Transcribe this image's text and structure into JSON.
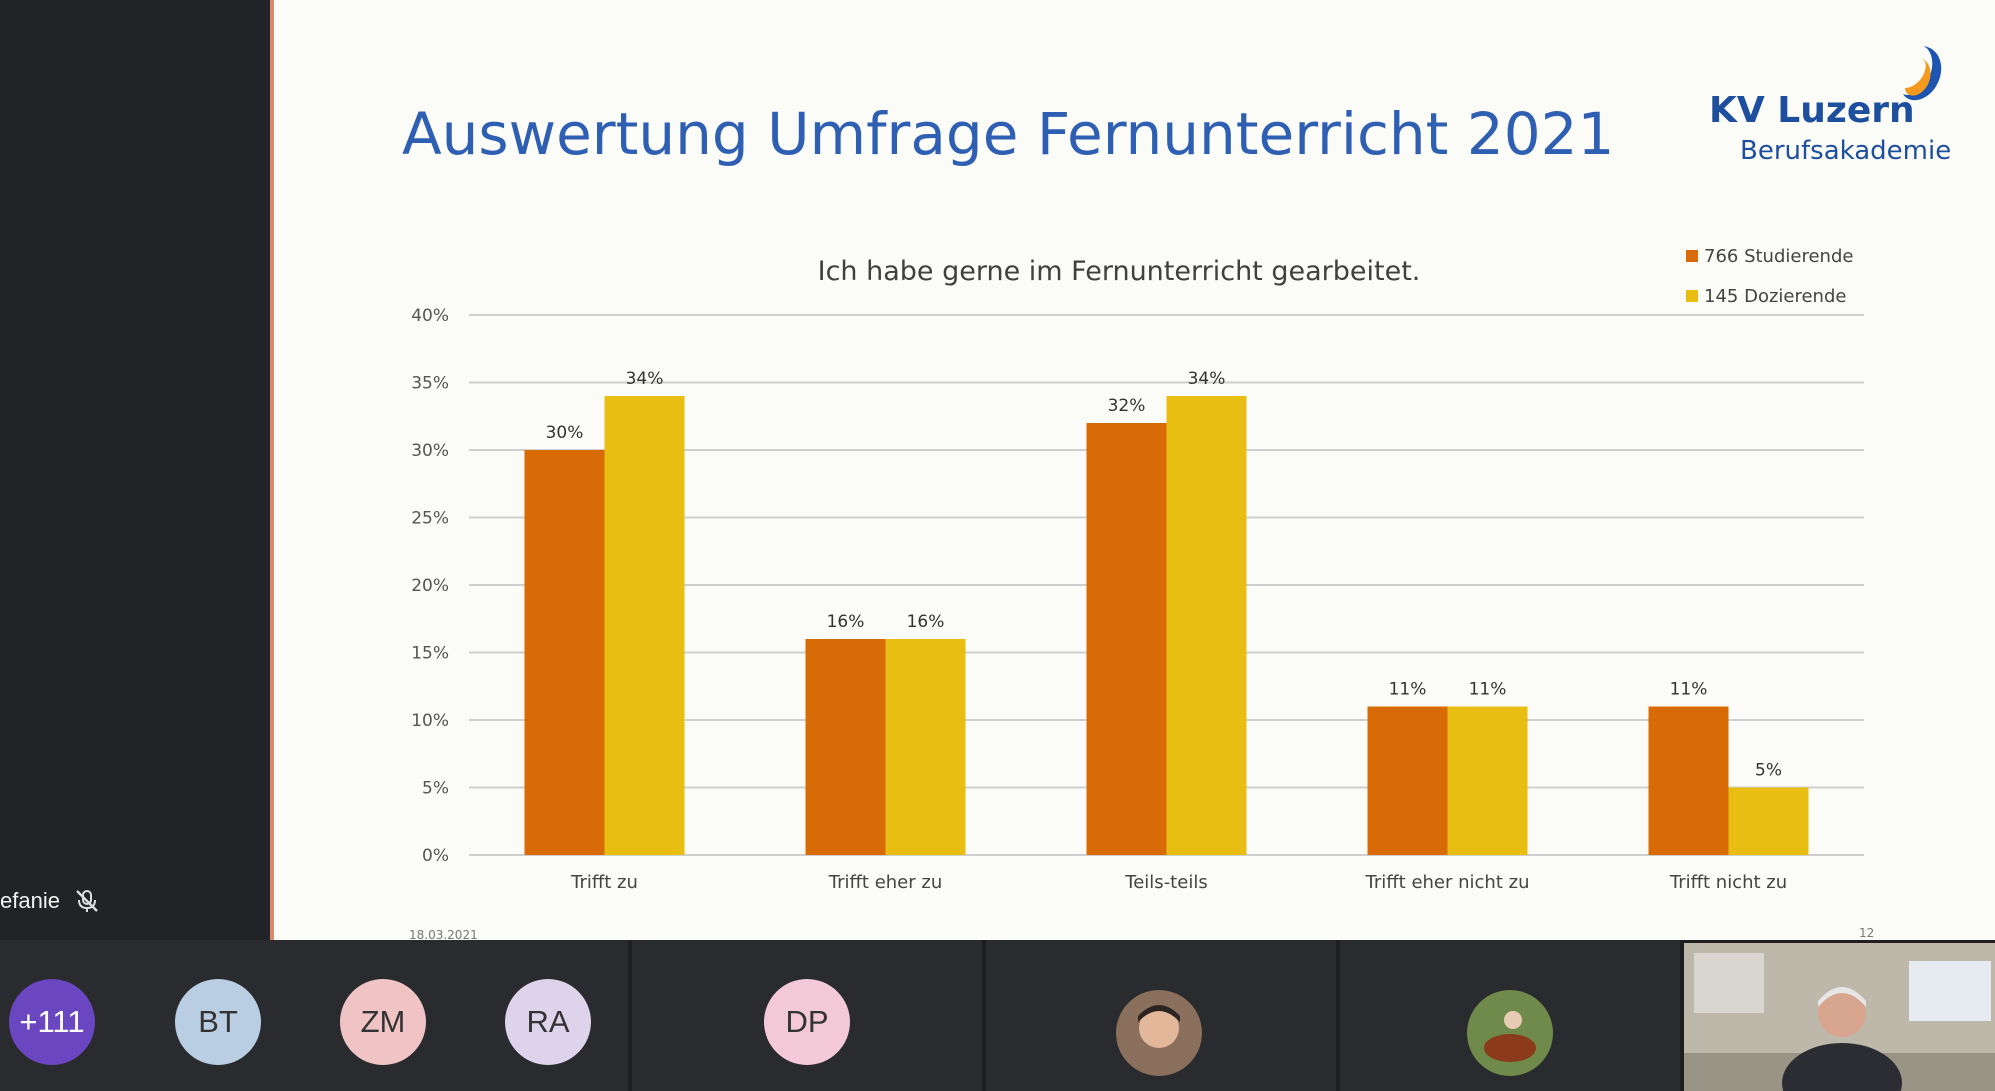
{
  "participant": {
    "name": "efanie"
  },
  "slide": {
    "title": "Auswertung Umfrage Fernunterricht 2021",
    "logo_name": "KV Luzern",
    "logo_sub": "Berufsakademie",
    "date": "18.03.2021",
    "page": "12"
  },
  "chart_data": {
    "type": "bar",
    "title": "Ich habe gerne im Fernunterricht gearbeitet.",
    "categories": [
      "Trifft zu",
      "Trifft eher zu",
      "Teils-teils",
      "Trifft eher nicht zu",
      "Trifft nicht zu"
    ],
    "series": [
      {
        "name": "766 Studierende",
        "color": "#d86b06",
        "values": [
          30,
          16,
          32,
          11,
          11
        ]
      },
      {
        "name": "145 Dozierende",
        "color": "#e9be12",
        "values": [
          34,
          16,
          34,
          11,
          5
        ]
      }
    ],
    "data_labels": [
      [
        "30%",
        "16%",
        "32%",
        "11%",
        "11%"
      ],
      [
        "34%",
        "16%",
        "34%",
        "11%",
        "5%"
      ]
    ],
    "ylim": [
      0,
      40
    ],
    "yticks": [
      "0%",
      "5%",
      "10%",
      "15%",
      "20%",
      "25%",
      "30%",
      "35%",
      "40%"
    ],
    "grid": true,
    "legend_position": "top-right"
  },
  "participants_bar": {
    "overflow_count": "+111",
    "avatars": [
      {
        "initials": "BT",
        "color": "#b9cde3"
      },
      {
        "initials": "ZM",
        "color": "#f0c4c4"
      },
      {
        "initials": "RA",
        "color": "#ddd3ea"
      },
      {
        "initials": "DP",
        "color": "#f3c9d7"
      }
    ],
    "overflow_color": "#6b46c1"
  }
}
